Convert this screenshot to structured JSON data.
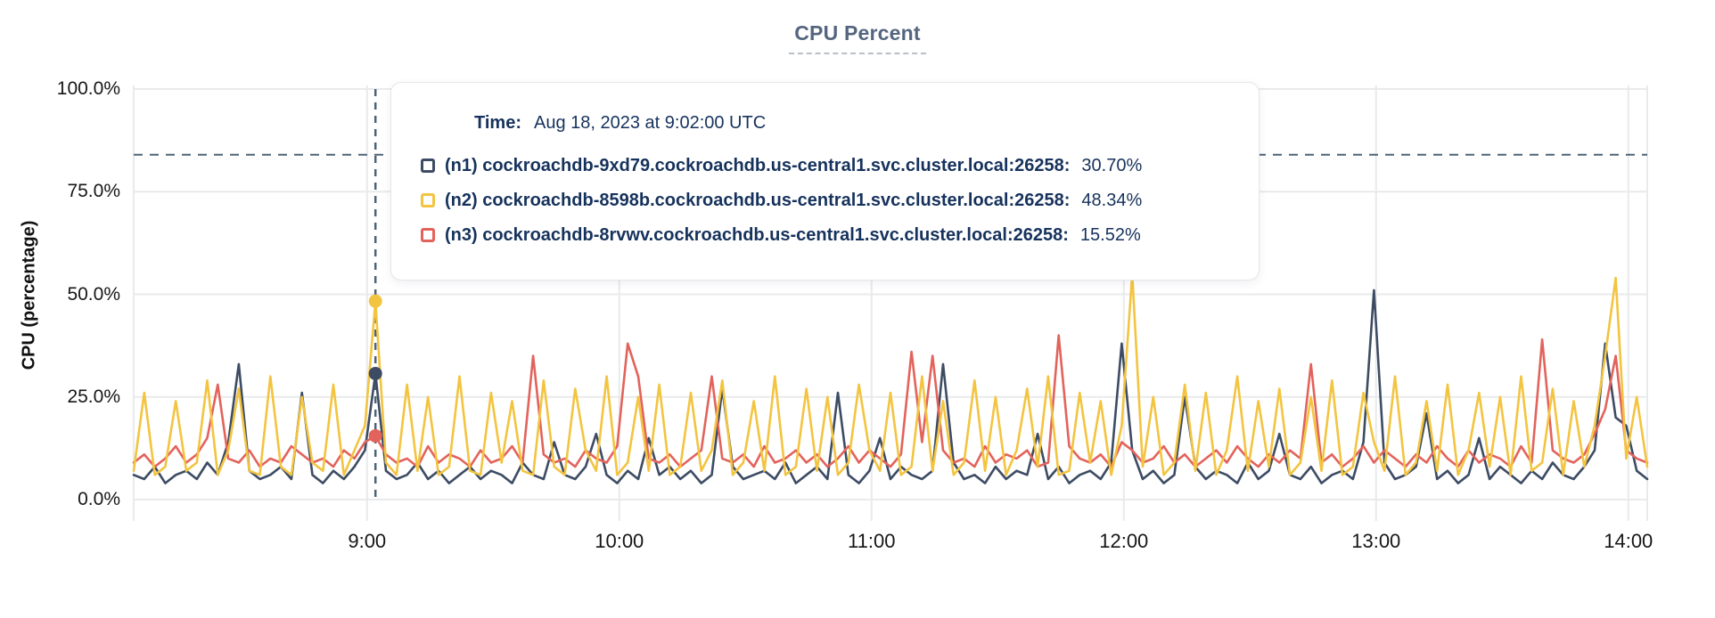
{
  "title": "CPU Percent",
  "tooltip": {
    "time_label": "Time:",
    "time_value": "Aug 18, 2023 at 9:02:00 UTC",
    "rows": [
      {
        "id": "n1",
        "label": "(n1) cockroachdb-9xd79.cockroachdb.us-central1.svc.cluster.local:26258:",
        "value": "30.70%",
        "color": "#3d4c64"
      },
      {
        "id": "n2",
        "label": "(n2) cockroachdb-8598b.cockroachdb.us-central1.svc.cluster.local:26258:",
        "value": "48.34%",
        "color": "#f3c440"
      },
      {
        "id": "n3",
        "label": "(n3) cockroachdb-8rvwv.cockroachdb.us-central1.svc.cluster.local:26258:",
        "value": "15.52%",
        "color": "#e2635c"
      }
    ]
  },
  "colors": {
    "grid": "#e9eaeb",
    "dashed_marker": "#4d6377",
    "title": "#54667f",
    "tooltip_text": "#16325c"
  },
  "chart_data": {
    "type": "line",
    "title": "CPU Percent",
    "xlabel": "",
    "ylabel": "CPU (percentage)",
    "ylim": [
      0,
      100
    ],
    "grid": true,
    "y_ticks": [
      {
        "pct": 0,
        "label": "0.0%"
      },
      {
        "pct": 25,
        "label": "25.0%"
      },
      {
        "pct": 50,
        "label": "50.0%"
      },
      {
        "pct": 75,
        "label": "75.0%"
      },
      {
        "pct": 100,
        "label": "100.0%"
      }
    ],
    "x_ticks": [
      {
        "min": 60,
        "label": "9:00"
      },
      {
        "min": 120,
        "label": "10:00"
      },
      {
        "min": 180,
        "label": "11:00"
      },
      {
        "min": 240,
        "label": "12:00"
      },
      {
        "min": 300,
        "label": "13:00"
      },
      {
        "min": 360,
        "label": "14:00"
      }
    ],
    "x_unit": "minutes after 8:00 UTC",
    "x_start_min": 4.5,
    "x_step_min": 2.5,
    "x_end_min": 364.5,
    "threshold_line": {
      "pct": 84,
      "style": "dashed"
    },
    "hover": {
      "index": 23,
      "time_min": 62,
      "time_text": "Aug 18, 2023 at 9:02:00 UTC",
      "values": {
        "n1": 30.7,
        "n2": 48.34,
        "n3": 15.52
      }
    },
    "series": [
      {
        "id": "n1",
        "name": "(n1) cockroachdb-9xd79.cockroachdb.us-central1.svc.cluster.local:26258",
        "color": "#3d4c64",
        "values": [
          6,
          5,
          8,
          4,
          6,
          7,
          5,
          9,
          6,
          14,
          33,
          7,
          5,
          6,
          8,
          5,
          26,
          6,
          4,
          7,
          5,
          8,
          12,
          30.7,
          7,
          5,
          6,
          9,
          5,
          7,
          4,
          6,
          8,
          5,
          7,
          6,
          4,
          9,
          6,
          5,
          14,
          6,
          5,
          8,
          16,
          6,
          4,
          7,
          5,
          15,
          6,
          8,
          5,
          7,
          4,
          6,
          27,
          8,
          5,
          6,
          7,
          5,
          9,
          4,
          6,
          8,
          5,
          26,
          6,
          4,
          7,
          15,
          5,
          8,
          6,
          5,
          7,
          33,
          9,
          5,
          6,
          4,
          8,
          5,
          7,
          6,
          16,
          5,
          8,
          4,
          6,
          7,
          5,
          9,
          38,
          12,
          5,
          7,
          4,
          6,
          25,
          8,
          5,
          7,
          6,
          4,
          9,
          5,
          7,
          16,
          6,
          5,
          8,
          4,
          6,
          7,
          5,
          14,
          51,
          9,
          5,
          6,
          8,
          21,
          5,
          7,
          4,
          6,
          15,
          5,
          8,
          6,
          4,
          7,
          5,
          9,
          6,
          5,
          8,
          12,
          38,
          20,
          18,
          7,
          5
        ]
      },
      {
        "id": "n2",
        "name": "(n2) cockroachdb-8598b.cockroachdb.us-central1.svc.cluster.local:26258",
        "color": "#f3c440",
        "values": [
          7,
          26,
          6,
          8,
          24,
          7,
          9,
          29,
          6,
          12,
          27,
          7,
          6,
          30,
          8,
          6,
          25,
          9,
          7,
          28,
          6,
          12,
          18,
          48.34,
          9,
          6,
          28,
          7,
          25,
          6,
          8,
          30,
          7,
          6,
          26,
          9,
          24,
          7,
          6,
          29,
          8,
          6,
          27,
          12,
          7,
          30,
          6,
          9,
          25,
          7,
          28,
          6,
          8,
          26,
          7,
          12,
          29,
          6,
          9,
          24,
          7,
          30,
          6,
          8,
          27,
          7,
          25,
          6,
          9,
          28,
          12,
          7,
          26,
          6,
          8,
          30,
          7,
          24,
          6,
          9,
          29,
          7,
          25,
          6,
          12,
          27,
          8,
          30,
          6,
          7,
          26,
          9,
          24,
          6,
          18,
          55,
          8,
          25,
          6,
          9,
          28,
          7,
          26,
          6,
          12,
          30,
          7,
          24,
          8,
          27,
          6,
          9,
          25,
          7,
          29,
          6,
          8,
          26,
          14,
          7,
          30,
          6,
          9,
          24,
          7,
          28,
          6,
          12,
          26,
          8,
          25,
          6,
          30,
          7,
          9,
          27,
          6,
          24,
          8,
          18,
          35,
          54,
          10,
          25,
          8
        ]
      },
      {
        "id": "n3",
        "name": "(n3) cockroachdb-8rvwv.cockroachdb.us-central1.svc.cluster.local:26258",
        "color": "#e2635c",
        "values": [
          9,
          11,
          8,
          10,
          13,
          9,
          11,
          15,
          28,
          10,
          9,
          12,
          8,
          10,
          9,
          13,
          11,
          9,
          10,
          8,
          12,
          10,
          14,
          15.52,
          11,
          9,
          10,
          8,
          13,
          9,
          11,
          10,
          8,
          12,
          9,
          10,
          13,
          9,
          35,
          11,
          9,
          10,
          8,
          12,
          10,
          9,
          13,
          38,
          30,
          10,
          9,
          11,
          8,
          10,
          12,
          30,
          10,
          9,
          11,
          8,
          13,
          9,
          10,
          12,
          9,
          11,
          8,
          10,
          13,
          9,
          12,
          10,
          8,
          11,
          36,
          14,
          35,
          12,
          9,
          10,
          8,
          13,
          9,
          11,
          10,
          12,
          8,
          9,
          40,
          13,
          10,
          9,
          11,
          8,
          14,
          12,
          9,
          10,
          13,
          9,
          11,
          8,
          10,
          12,
          9,
          13,
          10,
          8,
          11,
          9,
          12,
          10,
          33,
          9,
          11,
          8,
          10,
          13,
          9,
          12,
          10,
          8,
          11,
          9,
          13,
          10,
          8,
          12,
          9,
          11,
          10,
          8,
          13,
          9,
          39,
          12,
          10,
          9,
          11,
          16,
          22,
          35,
          12,
          10,
          9
        ]
      }
    ]
  }
}
